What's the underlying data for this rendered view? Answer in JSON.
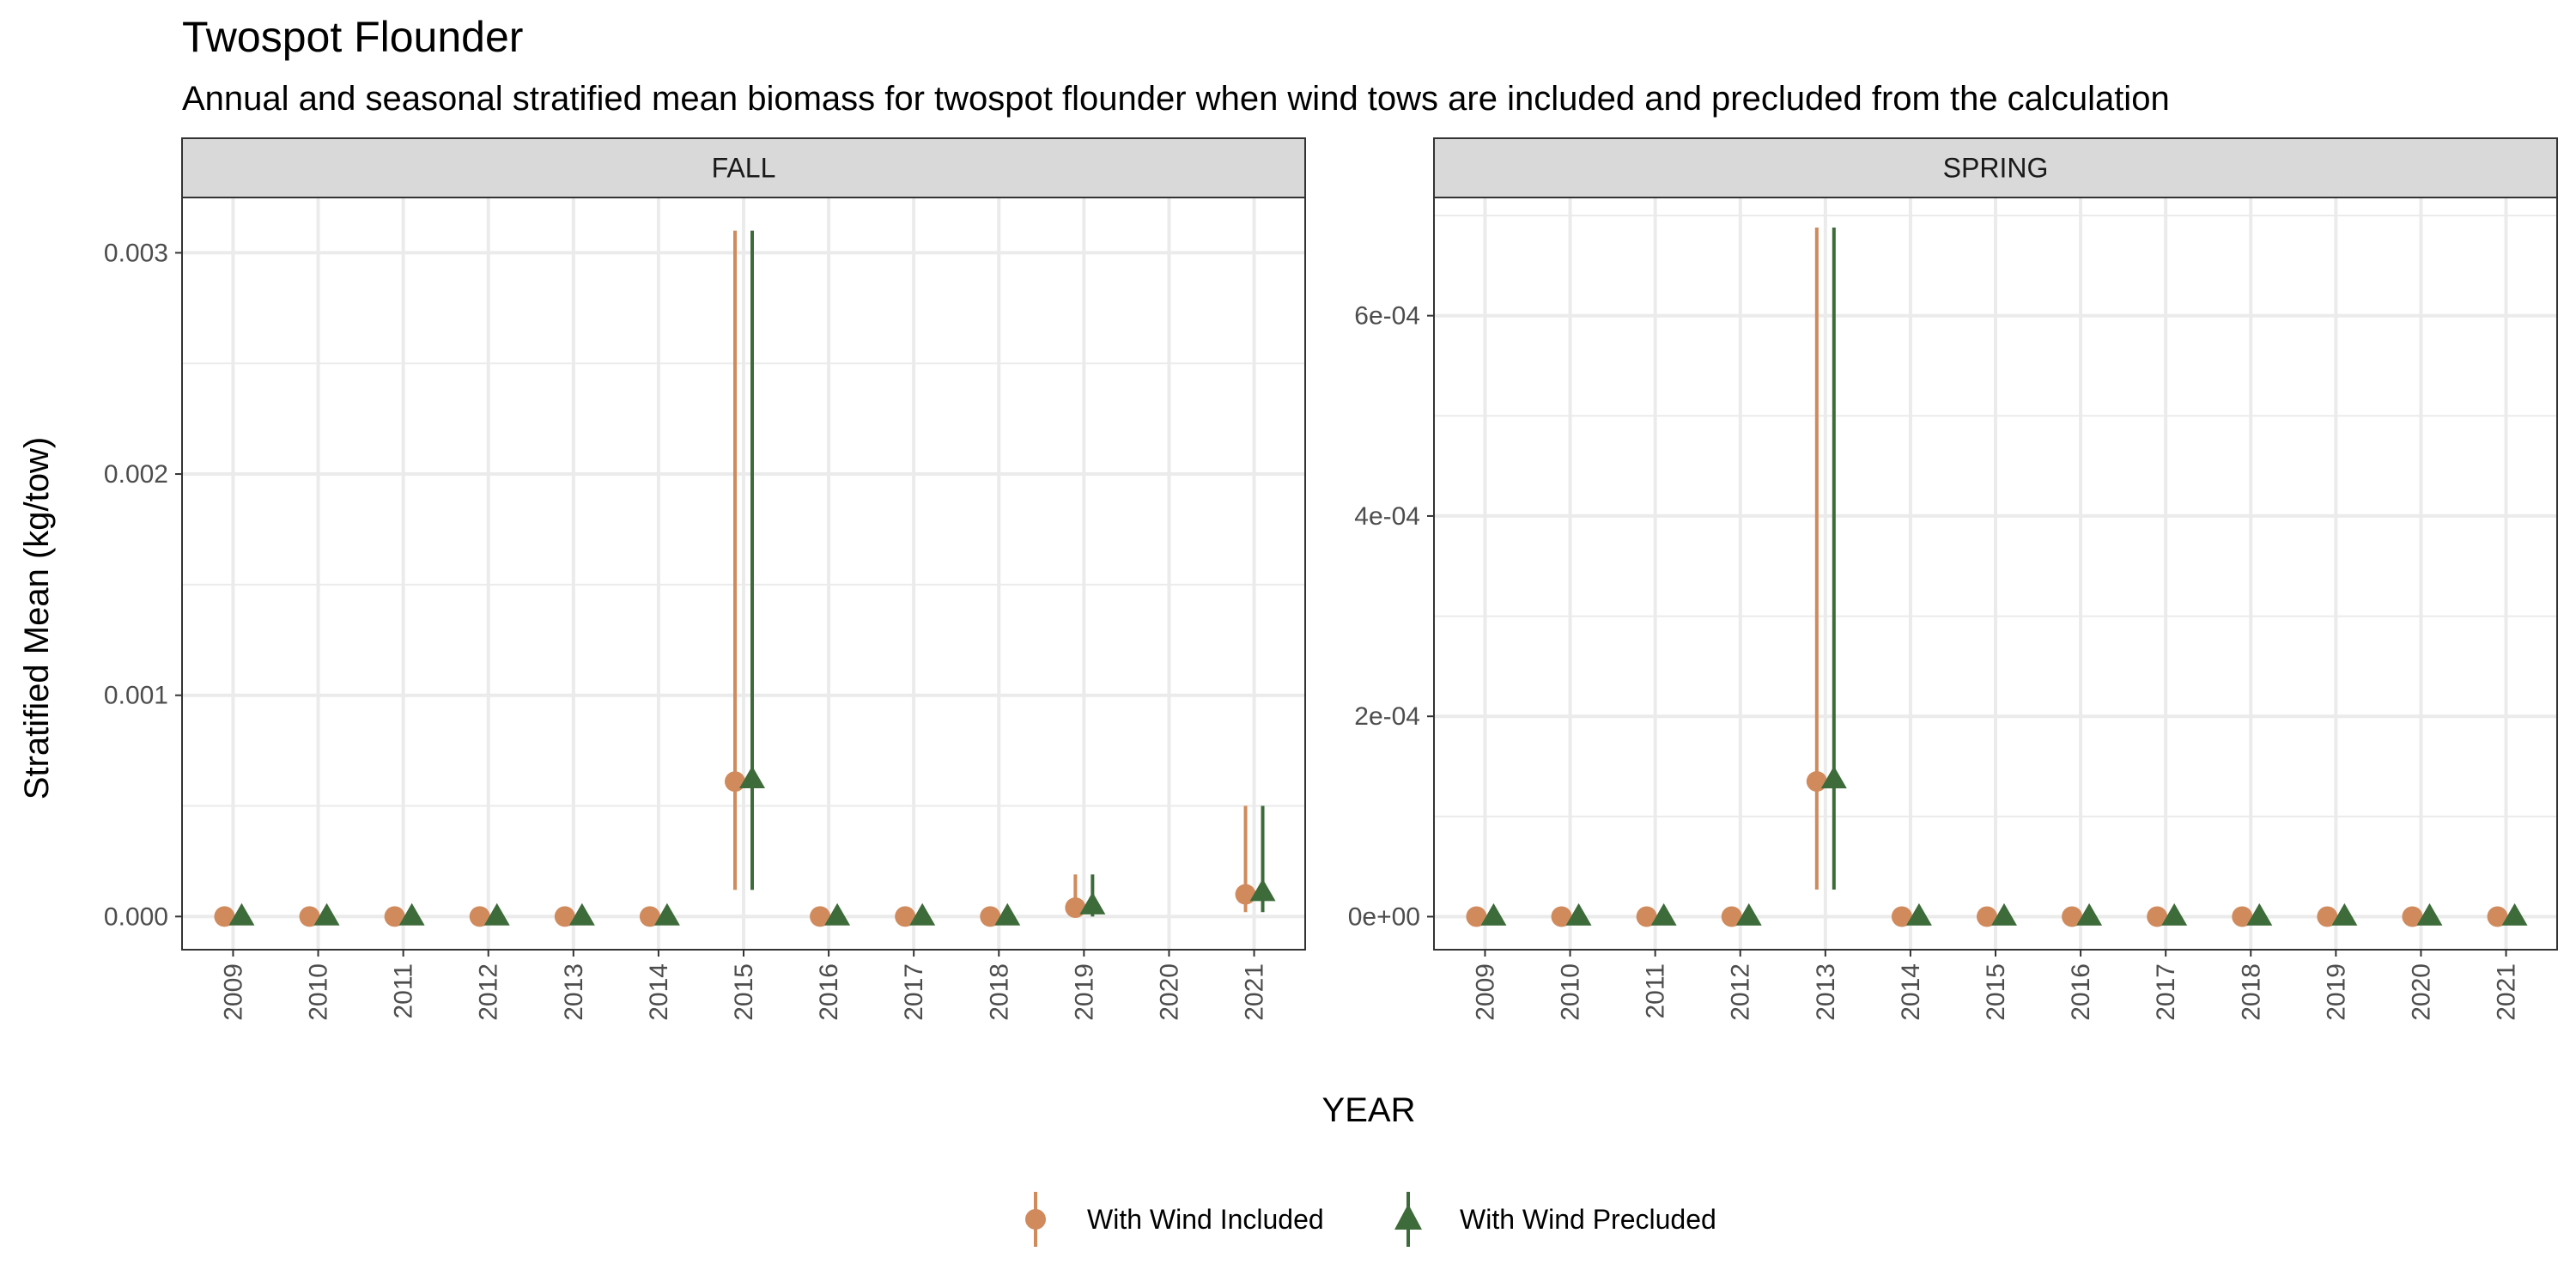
{
  "title": "Twospot Flounder",
  "subtitle": "Annual and seasonal stratified mean biomass for twospot flounder when wind tows are included and precluded from the calculation",
  "colors": {
    "included": "#d08a5c",
    "precluded": "#3d6b3a",
    "strip_fill": "#d9d9d9",
    "grid": "#ebebeb"
  },
  "chart_data": {
    "type": "scatter",
    "xlabel": "YEAR",
    "ylabel": "Stratified Mean (kg/tow)",
    "legend": {
      "placement": "bottom",
      "entries": [
        {
          "name": "With Wind Included",
          "shape": "circle",
          "color": "#d08a5c"
        },
        {
          "name": "With Wind Precluded",
          "shape": "triangle",
          "color": "#3d6b3a"
        }
      ]
    },
    "grid": true,
    "panels": [
      {
        "strip": "FALL",
        "years": [
          "2009",
          "2010",
          "2011",
          "2012",
          "2013",
          "2014",
          "2015",
          "2016",
          "2017",
          "2018",
          "2019",
          "2020",
          "2021"
        ],
        "ylim": [
          -0.00015,
          0.00325
        ],
        "yticks": [
          0,
          0.001,
          0.002,
          0.003
        ],
        "ytick_labels": [
          "0.000",
          "0.001",
          "0.002",
          "0.003"
        ],
        "series": [
          {
            "name": "With Wind Included",
            "points": [
              {
                "year": "2009",
                "mean": 0,
                "lower": 0,
                "upper": 0
              },
              {
                "year": "2010",
                "mean": 0,
                "lower": 0,
                "upper": 0
              },
              {
                "year": "2011",
                "mean": 0,
                "lower": 0,
                "upper": 0
              },
              {
                "year": "2012",
                "mean": 0,
                "lower": 0,
                "upper": 0
              },
              {
                "year": "2013",
                "mean": 0,
                "lower": 0,
                "upper": 0
              },
              {
                "year": "2014",
                "mean": 0,
                "lower": 0,
                "upper": 0
              },
              {
                "year": "2015",
                "mean": 0.00061,
                "lower": 0.00012,
                "upper": 0.0031
              },
              {
                "year": "2016",
                "mean": 0,
                "lower": 0,
                "upper": 0
              },
              {
                "year": "2017",
                "mean": 0,
                "lower": 0,
                "upper": 0
              },
              {
                "year": "2018",
                "mean": 0,
                "lower": 0,
                "upper": 0
              },
              {
                "year": "2019",
                "mean": 4e-05,
                "lower": 0,
                "upper": 0.00019
              },
              {
                "year": "2021",
                "mean": 0.0001,
                "lower": 2e-05,
                "upper": 0.0005
              }
            ]
          },
          {
            "name": "With Wind Precluded",
            "points": [
              {
                "year": "2009",
                "mean": 0,
                "lower": 0,
                "upper": 0
              },
              {
                "year": "2010",
                "mean": 0,
                "lower": 0,
                "upper": 0
              },
              {
                "year": "2011",
                "mean": 0,
                "lower": 0,
                "upper": 0
              },
              {
                "year": "2012",
                "mean": 0,
                "lower": 0,
                "upper": 0
              },
              {
                "year": "2013",
                "mean": 0,
                "lower": 0,
                "upper": 0
              },
              {
                "year": "2014",
                "mean": 0,
                "lower": 0,
                "upper": 0
              },
              {
                "year": "2015",
                "mean": 0.00062,
                "lower": 0.00012,
                "upper": 0.0031
              },
              {
                "year": "2016",
                "mean": 0,
                "lower": 0,
                "upper": 0
              },
              {
                "year": "2017",
                "mean": 0,
                "lower": 0,
                "upper": 0
              },
              {
                "year": "2018",
                "mean": 0,
                "lower": 0,
                "upper": 0
              },
              {
                "year": "2019",
                "mean": 5e-05,
                "lower": 0,
                "upper": 0.00019
              },
              {
                "year": "2021",
                "mean": 0.00011,
                "lower": 2e-05,
                "upper": 0.0005
              }
            ]
          }
        ]
      },
      {
        "strip": "SPRING",
        "years": [
          "2009",
          "2010",
          "2011",
          "2012",
          "2013",
          "2014",
          "2015",
          "2016",
          "2017",
          "2018",
          "2019",
          "2020",
          "2021"
        ],
        "ylim": [
          -3.3e-05,
          0.000718
        ],
        "yticks": [
          0,
          0.0002,
          0.0004,
          0.0006
        ],
        "ytick_labels": [
          "0e+00",
          "2e-04",
          "4e-04",
          "6e-04"
        ],
        "series": [
          {
            "name": "With Wind Included",
            "points": [
              {
                "year": "2009",
                "mean": 0,
                "lower": 0,
                "upper": 0
              },
              {
                "year": "2010",
                "mean": 0,
                "lower": 0,
                "upper": 0
              },
              {
                "year": "2011",
                "mean": 0,
                "lower": 0,
                "upper": 0
              },
              {
                "year": "2012",
                "mean": 0,
                "lower": 0,
                "upper": 0
              },
              {
                "year": "2013",
                "mean": 0.000135,
                "lower": 2.7e-05,
                "upper": 0.000688
              },
              {
                "year": "2014",
                "mean": 0,
                "lower": 0,
                "upper": 0
              },
              {
                "year": "2015",
                "mean": 0,
                "lower": 0,
                "upper": 0
              },
              {
                "year": "2016",
                "mean": 0,
                "lower": 0,
                "upper": 0
              },
              {
                "year": "2017",
                "mean": 0,
                "lower": 0,
                "upper": 0
              },
              {
                "year": "2018",
                "mean": 0,
                "lower": 0,
                "upper": 0
              },
              {
                "year": "2019",
                "mean": 0,
                "lower": 0,
                "upper": 0
              },
              {
                "year": "2020",
                "mean": 0,
                "lower": 0,
                "upper": 0
              },
              {
                "year": "2021",
                "mean": 0,
                "lower": 0,
                "upper": 0
              }
            ]
          },
          {
            "name": "With Wind Precluded",
            "points": [
              {
                "year": "2009",
                "mean": 0,
                "lower": 0,
                "upper": 0
              },
              {
                "year": "2010",
                "mean": 0,
                "lower": 0,
                "upper": 0
              },
              {
                "year": "2011",
                "mean": 0,
                "lower": 0,
                "upper": 0
              },
              {
                "year": "2012",
                "mean": 0,
                "lower": 0,
                "upper": 0
              },
              {
                "year": "2013",
                "mean": 0.000137,
                "lower": 2.7e-05,
                "upper": 0.000688
              },
              {
                "year": "2014",
                "mean": 0,
                "lower": 0,
                "upper": 0
              },
              {
                "year": "2015",
                "mean": 0,
                "lower": 0,
                "upper": 0
              },
              {
                "year": "2016",
                "mean": 0,
                "lower": 0,
                "upper": 0
              },
              {
                "year": "2017",
                "mean": 0,
                "lower": 0,
                "upper": 0
              },
              {
                "year": "2018",
                "mean": 0,
                "lower": 0,
                "upper": 0
              },
              {
                "year": "2019",
                "mean": 0,
                "lower": 0,
                "upper": 0
              },
              {
                "year": "2020",
                "mean": 0,
                "lower": 0,
                "upper": 0
              },
              {
                "year": "2021",
                "mean": 0,
                "lower": 0,
                "upper": 0
              }
            ]
          }
        ]
      }
    ]
  }
}
